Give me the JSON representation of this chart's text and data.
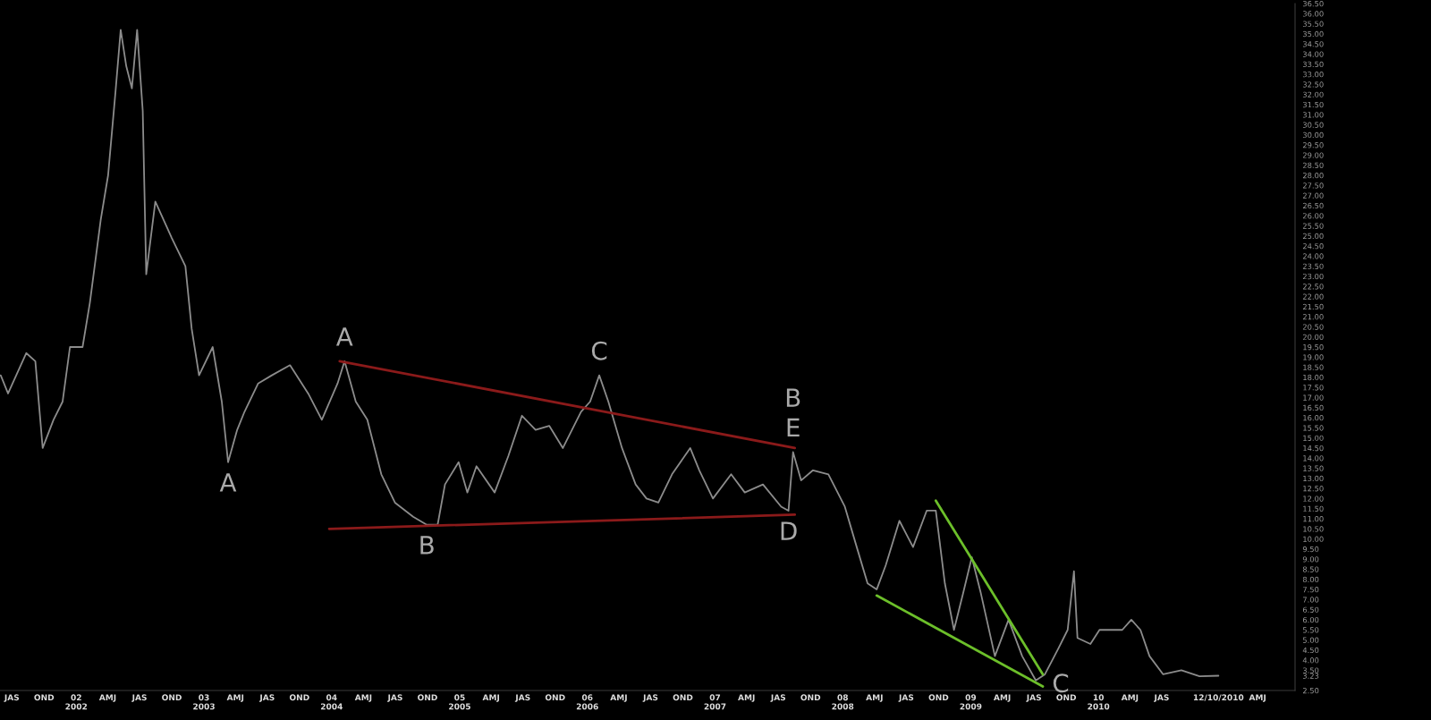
{
  "chart_data": {
    "type": "line",
    "legend": false,
    "grid": false,
    "marker": "none",
    "line_style": "solid",
    "xlim": [
      "2001-05-28",
      "2011-07-17"
    ],
    "ylim": [
      2.5,
      36.5
    ],
    "xticks": [
      {
        "value": "2001-07-01",
        "label": "JAS"
      },
      {
        "value": "2001-10-01",
        "label": "OND"
      },
      {
        "value": "2002-01-01",
        "label": "02\n2002"
      },
      {
        "value": "2002-04-01",
        "label": "AMJ"
      },
      {
        "value": "2002-07-01",
        "label": "JAS"
      },
      {
        "value": "2002-10-01",
        "label": "OND"
      },
      {
        "value": "2003-01-01",
        "label": "03\n2003"
      },
      {
        "value": "2003-04-01",
        "label": "AMJ"
      },
      {
        "value": "2003-07-01",
        "label": "JAS"
      },
      {
        "value": "2003-10-01",
        "label": "OND"
      },
      {
        "value": "2004-01-01",
        "label": "04\n2004"
      },
      {
        "value": "2004-04-01",
        "label": "AMJ"
      },
      {
        "value": "2004-07-01",
        "label": "JAS"
      },
      {
        "value": "2004-10-01",
        "label": "OND"
      },
      {
        "value": "2005-01-01",
        "label": "05\n2005"
      },
      {
        "value": "2005-04-01",
        "label": "AMJ"
      },
      {
        "value": "2005-07-01",
        "label": "JAS"
      },
      {
        "value": "2005-10-01",
        "label": "OND"
      },
      {
        "value": "2006-01-01",
        "label": "06\n2006"
      },
      {
        "value": "2006-04-01",
        "label": "AMJ"
      },
      {
        "value": "2006-07-01",
        "label": "JAS"
      },
      {
        "value": "2006-10-01",
        "label": "OND"
      },
      {
        "value": "2007-01-01",
        "label": "07\n2007"
      },
      {
        "value": "2007-04-01",
        "label": "AMJ"
      },
      {
        "value": "2007-07-01",
        "label": "JAS"
      },
      {
        "value": "2007-10-01",
        "label": "OND"
      },
      {
        "value": "2008-01-01",
        "label": "08\n2008"
      },
      {
        "value": "2008-04-01",
        "label": "AMJ"
      },
      {
        "value": "2008-07-01",
        "label": "JAS"
      },
      {
        "value": "2008-10-01",
        "label": "OND"
      },
      {
        "value": "2009-01-01",
        "label": "09\n2009"
      },
      {
        "value": "2009-04-01",
        "label": "AMJ"
      },
      {
        "value": "2009-07-01",
        "label": "JAS"
      },
      {
        "value": "2009-10-01",
        "label": "OND"
      },
      {
        "value": "2010-01-01",
        "label": "10\n2010"
      },
      {
        "value": "2010-04-01",
        "label": "AMJ"
      },
      {
        "value": "2010-07-01",
        "label": "JAS"
      },
      {
        "value": "2010-12-10",
        "label": "12/10/2010"
      },
      {
        "value": "2011-04-01",
        "label": "AMJ"
      }
    ],
    "yticks": [
      {
        "value": 2.5,
        "label": "2.50"
      },
      {
        "value": 3.23,
        "label": "3.23"
      },
      {
        "value": 3.5,
        "label": "3.50"
      },
      {
        "value": 4,
        "label": "4.00"
      },
      {
        "value": 4.5,
        "label": "4.50"
      },
      {
        "value": 5,
        "label": "5.00"
      },
      {
        "value": 5.5,
        "label": "5.50"
      },
      {
        "value": 6,
        "label": "6.00"
      },
      {
        "value": 6.5,
        "label": "6.50"
      },
      {
        "value": 7,
        "label": "7.00"
      },
      {
        "value": 7.5,
        "label": "7.50"
      },
      {
        "value": 8,
        "label": "8.00"
      },
      {
        "value": 8.5,
        "label": "8.50"
      },
      {
        "value": 9,
        "label": "9.00"
      },
      {
        "value": 9.5,
        "label": "9.50"
      },
      {
        "value": 10,
        "label": "10.00"
      },
      {
        "value": 10.5,
        "label": "10.50"
      },
      {
        "value": 11,
        "label": "11.00"
      },
      {
        "value": 11.5,
        "label": "11.50"
      },
      {
        "value": 12,
        "label": "12.00"
      },
      {
        "value": 12.5,
        "label": "12.50"
      },
      {
        "value": 13,
        "label": "13.00"
      },
      {
        "value": 13.5,
        "label": "13.50"
      },
      {
        "value": 14,
        "label": "14.00"
      },
      {
        "value": 14.5,
        "label": "14.50"
      },
      {
        "value": 15,
        "label": "15.00"
      },
      {
        "value": 15.5,
        "label": "15.50"
      },
      {
        "value": 16,
        "label": "16.00"
      },
      {
        "value": 16.5,
        "label": "16.50"
      },
      {
        "value": 17,
        "label": "17.00"
      },
      {
        "value": 17.5,
        "label": "17.50"
      },
      {
        "value": 18,
        "label": "18.00"
      },
      {
        "value": 18.5,
        "label": "18.50"
      },
      {
        "value": 19,
        "label": "19.00"
      },
      {
        "value": 19.5,
        "label": "19.50"
      },
      {
        "value": 20,
        "label": "20.00"
      },
      {
        "value": 20.5,
        "label": "20.50"
      },
      {
        "value": 21,
        "label": "21.00"
      },
      {
        "value": 21.5,
        "label": "21.50"
      },
      {
        "value": 22,
        "label": "22.00"
      },
      {
        "value": 22.5,
        "label": "22.50"
      },
      {
        "value": 23,
        "label": "23.00"
      },
      {
        "value": 23.5,
        "label": "23.50"
      },
      {
        "value": 24,
        "label": "24.00"
      },
      {
        "value": 24.5,
        "label": "24.50"
      },
      {
        "value": 25,
        "label": "25.00"
      },
      {
        "value": 25.5,
        "label": "25.50"
      },
      {
        "value": 26,
        "label": "26.00"
      },
      {
        "value": 26.5,
        "label": "26.50"
      },
      {
        "value": 27,
        "label": "27.00"
      },
      {
        "value": 27.5,
        "label": "27.50"
      },
      {
        "value": 28,
        "label": "28.00"
      },
      {
        "value": 28.5,
        "label": "28.50"
      },
      {
        "value": 29,
        "label": "29.00"
      },
      {
        "value": 29.5,
        "label": "29.50"
      },
      {
        "value": 30,
        "label": "30.00"
      },
      {
        "value": 30.5,
        "label": "30.50"
      },
      {
        "value": 31,
        "label": "31.00"
      },
      {
        "value": 31.5,
        "label": "31.50"
      },
      {
        "value": 32,
        "label": "32.00"
      },
      {
        "value": 32.5,
        "label": "32.50"
      },
      {
        "value": 33,
        "label": "33.00"
      },
      {
        "value": 33.5,
        "label": "33.50"
      },
      {
        "value": 34,
        "label": "34.00"
      },
      {
        "value": 34.5,
        "label": "34.50"
      },
      {
        "value": 35,
        "label": "35.00"
      },
      {
        "value": 35.5,
        "label": "35.50"
      },
      {
        "value": 36,
        "label": "36.00"
      },
      {
        "value": 36.5,
        "label": "36.50"
      }
    ],
    "series": [
      {
        "color": "#8c8c8c",
        "x": [
          "2001-05-30",
          "2001-06-20",
          "2001-08-11",
          "2001-09-06",
          "2001-09-27",
          "2001-10-28",
          "2001-11-23",
          "2001-12-14",
          "2002-01-19",
          "2002-02-09",
          "2002-03-12",
          "2002-04-02",
          "2002-04-23",
          "2002-05-08",
          "2002-05-24",
          "2002-06-09",
          "2002-06-24",
          "2002-07-10",
          "2002-07-20",
          "2002-08-15",
          "2002-10-01",
          "2002-11-09",
          "2002-11-27",
          "2002-12-18",
          "2003-01-26",
          "2003-02-21",
          "2003-03-11",
          "2003-04-06",
          "2003-04-27",
          "2003-06-05",
          "2003-07-14",
          "2003-09-04",
          "2003-10-26",
          "2003-12-04",
          "2004-01-18",
          "2004-02-07",
          "2004-03-10",
          "2004-04-12",
          "2004-05-22",
          "2004-06-30",
          "2004-08-21",
          "2004-09-29",
          "2004-10-30",
          "2004-11-20",
          "2004-12-29",
          "2005-01-23",
          "2005-02-18",
          "2005-04-11",
          "2005-05-20",
          "2005-06-28",
          "2005-08-06",
          "2005-09-14",
          "2005-10-23",
          "2005-12-14",
          "2006-01-09",
          "2006-02-04",
          "2006-03-02",
          "2006-04-10",
          "2006-05-19",
          "2006-06-19",
          "2006-07-23",
          "2006-08-31",
          "2006-10-22",
          "2006-11-17",
          "2006-12-26",
          "2007-02-16",
          "2007-03-27",
          "2007-05-18",
          "2007-07-09",
          "2007-07-30",
          "2007-08-12",
          "2007-09-04",
          "2007-10-08",
          "2007-11-21",
          "2008-01-07",
          "2008-02-10",
          "2008-03-12",
          "2008-04-07",
          "2008-05-03",
          "2008-06-11",
          "2008-07-20",
          "2008-08-28",
          "2008-09-23",
          "2008-10-19",
          "2008-11-14",
          "2008-12-10",
          "2009-01-04",
          "2009-01-30",
          "2009-03-11",
          "2009-04-19",
          "2009-05-28",
          "2009-07-06",
          "2009-08-01",
          "2009-09-09",
          "2009-10-05",
          "2009-10-23",
          "2009-11-02",
          "2009-12-09",
          "2010-01-04",
          "2010-03-10",
          "2010-04-05",
          "2010-05-01",
          "2010-05-27",
          "2010-07-05",
          "2010-08-26",
          "2010-10-17",
          "2010-12-10"
        ],
        "values": [
          18.1,
          17.2,
          19.2,
          18.8,
          14.5,
          15.9,
          16.8,
          19.5,
          19.5,
          21.7,
          25.8,
          28.0,
          32.1,
          35.2,
          33.4,
          32.3,
          35.2,
          31.2,
          23.1,
          26.7,
          24.9,
          23.5,
          20.4,
          18.1,
          19.5,
          16.8,
          13.8,
          15.4,
          16.3,
          17.7,
          18.1,
          18.6,
          17.2,
          15.9,
          17.7,
          18.8,
          16.8,
          15.9,
          13.2,
          11.8,
          11.1,
          10.7,
          10.7,
          12.7,
          13.8,
          12.3,
          13.6,
          12.3,
          14.1,
          16.1,
          15.4,
          15.6,
          14.5,
          16.3,
          16.8,
          18.1,
          16.8,
          14.5,
          12.7,
          12.0,
          11.8,
          13.2,
          14.5,
          13.4,
          12.0,
          13.2,
          12.3,
          12.7,
          11.6,
          11.4,
          14.3,
          12.9,
          13.4,
          13.2,
          11.6,
          9.6,
          7.8,
          7.5,
          8.7,
          10.9,
          9.6,
          11.4,
          11.4,
          7.8,
          5.5,
          7.3,
          9.1,
          7.3,
          4.2,
          6.0,
          4.2,
          3.0,
          3.3,
          4.6,
          5.5,
          8.4,
          5.1,
          4.8,
          5.5,
          5.5,
          6.0,
          5.5,
          4.2,
          3.3,
          3.5,
          3.2,
          3.23
        ]
      },
      {
        "type": "line",
        "color": "#8b1a1a",
        "x": [
          "2004-01-24",
          "2007-08-17"
        ],
        "values": [
          18.8,
          14.5
        ]
      },
      {
        "type": "line",
        "color": "#8b1a1a",
        "x": [
          "2003-12-25",
          "2007-08-17"
        ],
        "values": [
          10.5,
          11.2
        ]
      },
      {
        "type": "line",
        "color": "#6cbf2a",
        "x": [
          "2008-09-23",
          "2009-07-26"
        ],
        "values": [
          11.9,
          3.3
        ]
      },
      {
        "type": "line",
        "color": "#6cbf2a",
        "x": [
          "2008-04-07",
          "2009-07-26"
        ],
        "values": [
          7.2,
          2.7
        ]
      }
    ],
    "annotations": [
      {
        "text": "A",
        "x": "2004-02-07",
        "y": 18.8
      },
      {
        "text": "A",
        "x": "2003-03-11",
        "y": 13.8
      },
      {
        "text": "B",
        "x": "2004-09-29",
        "y": 10.7
      },
      {
        "text": "C",
        "x": "2006-02-04",
        "y": 18.1
      },
      {
        "text": "D",
        "x": "2007-07-30",
        "y": 11.4
      },
      {
        "text": "E",
        "x": "2007-08-12",
        "y": 14.3
      },
      {
        "text": "B",
        "x": "2007-08-12",
        "y": 14.3
      },
      {
        "text": "C",
        "x": "2009-07-06",
        "y": 3.0
      }
    ]
  }
}
